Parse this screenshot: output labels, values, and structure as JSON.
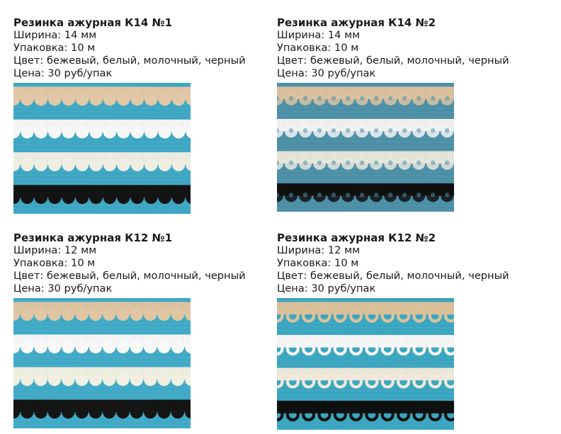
{
  "products": [
    {
      "title": "Резинка ажурная К14 №1",
      "width": "Ширина: 14 мм",
      "pack": "Упаковка: 10 м",
      "colors": "Цвет: бежевый, белый, молочный, черный",
      "price": "Цена: 30 руб/упак",
      "photo": {
        "background": "#3da6c3",
        "trims": [
          "#e2c8a6",
          "#f7f7f7",
          "#eeeee2",
          "#141414"
        ],
        "pattern": "scallop"
      }
    },
    {
      "title": "Резинка ажурная К14 №2",
      "width": "Ширина: 14 мм",
      "pack": "Упаковка: 10 м",
      "colors": "Цвет: бежевый, белый, молочный, черный",
      "price": "Цена: 30 руб/упак",
      "photo": {
        "background": "#4b8fa6",
        "trims": [
          "#dcc2a0",
          "#f2f2f2",
          "#e6e6dc",
          "#111111"
        ],
        "pattern": "lace"
      }
    },
    {
      "title": "Резинка ажурная К12 №1",
      "width": "Ширина: 12 мм",
      "pack": "Упаковка: 10 м",
      "colors": "Цвет: бежевый, белый, молочный, черный",
      "price": "Цена: 30 руб/упак",
      "photo": {
        "background": "#3fa9c6",
        "trims": [
          "#e0c6a2",
          "#f8f8f8",
          "#f0efe2",
          "#151515"
        ],
        "pattern": "scallop"
      }
    },
    {
      "title": "Резинка ажурная К12 №2",
      "width": "Ширина: 12 мм",
      "pack": "Упаковка: 10 м",
      "colors": "Цвет: бежевый, белый, молочный, черный",
      "price": "Цена: 30 руб/упак",
      "photo": {
        "background": "#3aa5bf",
        "trims": [
          "#dcc29c",
          "#f7f7f7",
          "#efeadb",
          "#101010"
        ],
        "pattern": "loops"
      }
    }
  ]
}
